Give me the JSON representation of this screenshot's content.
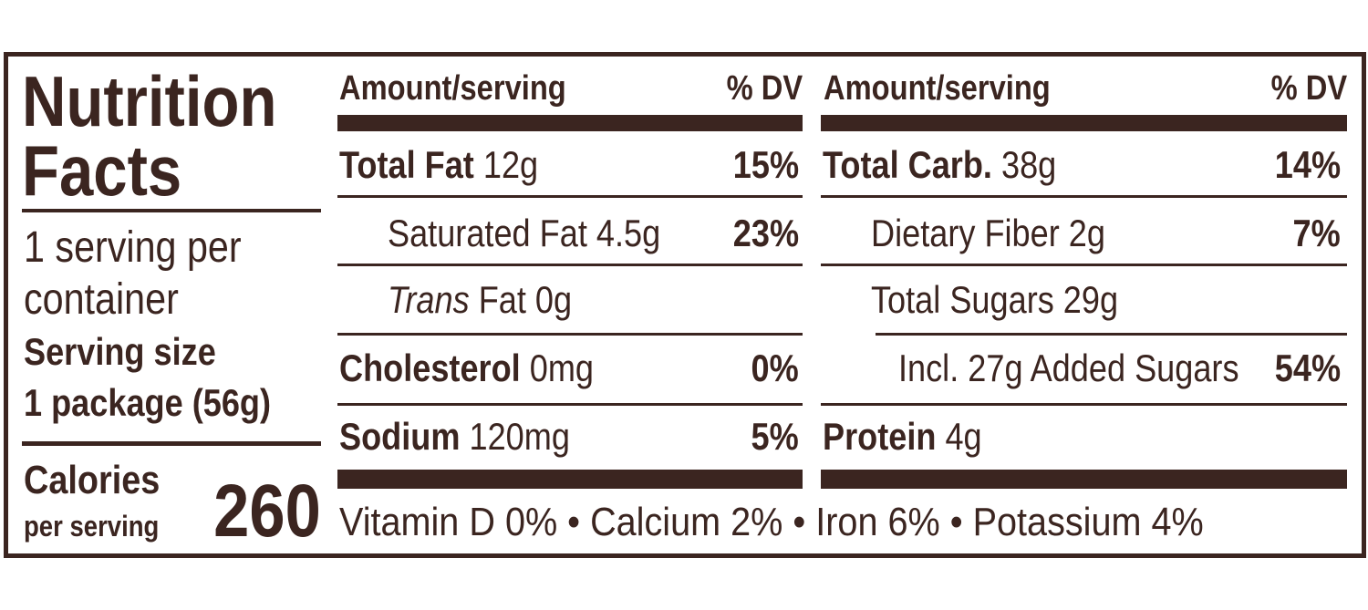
{
  "title": {
    "line1": "Nutrition",
    "line2": "Facts"
  },
  "servings_per_container": {
    "line1": "1 serving per",
    "line2": "container"
  },
  "serving_size_label": "Serving size",
  "serving_size": "1 package (56g)",
  "calories_label": "Calories",
  "calories_sublabel": "per serving",
  "calories": 260,
  "columns": [
    {
      "header_amount": "Amount/serving",
      "header_dv": "% DV",
      "rows": [
        {
          "name": "Total Fat",
          "amount": "12g",
          "dv": "15%"
        },
        {
          "name": "Saturated Fat 4.5g",
          "dv": "23%"
        },
        {
          "name_italic": "Trans",
          "name": "Fat 0g"
        },
        {
          "name": "Cholesterol",
          "amount": "0mg",
          "dv": "0%"
        },
        {
          "name": "Sodium",
          "amount": "120mg",
          "dv": "5%"
        }
      ]
    },
    {
      "header_amount": "Amount/serving",
      "header_dv": "% DV",
      "rows": [
        {
          "name": "Total Carb.",
          "amount": "38g",
          "dv": "14%"
        },
        {
          "name": "Dietary Fiber 2g",
          "dv": "7%"
        },
        {
          "name": "Total Sugars 29g"
        },
        {
          "name": "Incl. 27g Added Sugars",
          "dv": "54%"
        },
        {
          "name": "Protein",
          "amount": "4g"
        }
      ]
    }
  ],
  "vitamins": [
    {
      "name": "Vitamin D",
      "dv": "0%"
    },
    {
      "name": "Calcium",
      "dv": "2%"
    },
    {
      "name": "Iron",
      "dv": "6%"
    },
    {
      "name": "Potassium",
      "dv": "4%"
    }
  ]
}
